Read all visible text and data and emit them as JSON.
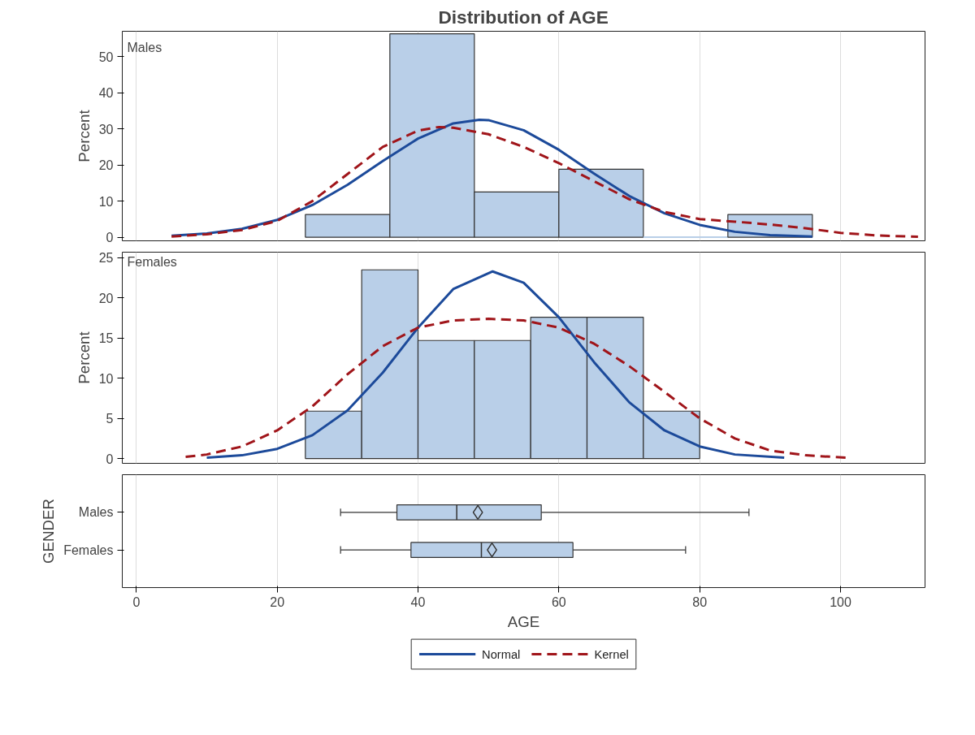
{
  "chart_data": [
    {
      "type": "histogram",
      "title": "Distribution of AGE",
      "ylabel": "Percent",
      "annotations": [
        "Males"
      ],
      "bins": [
        24,
        36,
        48,
        60,
        72,
        84,
        96
      ],
      "values": [
        6.3,
        56.3,
        12.5,
        18.8,
        0,
        6.3
      ],
      "color": "#b9cfe8",
      "xlim": [
        -2,
        112
      ],
      "xticks": [
        0,
        20,
        40,
        60,
        80,
        100
      ],
      "ylim": [
        -1,
        57
      ],
      "yticks": [
        0,
        10,
        20,
        30,
        40,
        50
      ],
      "tick_labels": "y",
      "grid": "x",
      "legend": "bottom",
      "marker": "none",
      "series": [
        {
          "name": "Normal",
          "type": "line",
          "color": "#1c4a9a",
          "line_style": "solid",
          "x": [
            5,
            10,
            15,
            20,
            25,
            30,
            35,
            40,
            45,
            48.7,
            50,
            55,
            60,
            65,
            70,
            75,
            80,
            85,
            90,
            96
          ],
          "values": [
            0.4,
            1.0,
            2.3,
            4.8,
            8.9,
            14.5,
            21.1,
            27.3,
            31.5,
            32.5,
            32.4,
            29.6,
            24.2,
            17.6,
            11.4,
            6.6,
            3.4,
            1.5,
            0.6,
            0.2
          ]
        },
        {
          "name": "Kernel",
          "type": "line",
          "color": "#a0151a",
          "line_style": "dashed",
          "x": [
            5,
            10,
            15,
            20,
            25,
            30,
            35,
            40,
            43,
            45,
            50,
            55,
            60,
            65,
            70,
            75,
            80,
            85,
            90,
            95,
            100,
            105,
            111
          ],
          "values": [
            0.2,
            0.8,
            2,
            4.5,
            10,
            17.5,
            25,
            29.5,
            30.5,
            30.3,
            28.5,
            25,
            20.5,
            15.5,
            10.5,
            7,
            5,
            4.3,
            3.5,
            2.5,
            1.2,
            0.5,
            0.1
          ]
        }
      ]
    },
    {
      "type": "histogram",
      "ylabel": "Percent",
      "annotations": [
        "Females"
      ],
      "bins": [
        24,
        32,
        40,
        48,
        56,
        64,
        72,
        80
      ],
      "values": [
        5.9,
        23.5,
        14.7,
        14.7,
        17.6,
        17.6,
        5.9
      ],
      "color": "#b9cfe8",
      "xlim": [
        -2,
        112
      ],
      "xticks": [
        0,
        20,
        40,
        60,
        80,
        100
      ],
      "ylim": [
        -0.6,
        25.7
      ],
      "yticks": [
        0,
        5,
        10,
        15,
        20,
        25
      ],
      "tick_labels": "y",
      "grid": "x",
      "marker": "none",
      "series": [
        {
          "type": "line",
          "color": "#1c4a9a",
          "line_style": "solid",
          "x": [
            10,
            15,
            20,
            25,
            30,
            35,
            40,
            45,
            50.6,
            55,
            60,
            65,
            70,
            75,
            80,
            85,
            92
          ],
          "values": [
            0.1,
            0.4,
            1.2,
            2.9,
            6.0,
            10.7,
            16.3,
            21.1,
            23.3,
            21.9,
            17.6,
            12.0,
            7.0,
            3.5,
            1.5,
            0.5,
            0.1
          ]
        },
        {
          "type": "line",
          "color": "#a0151a",
          "line_style": "dashed",
          "x": [
            7,
            10,
            15,
            20,
            25,
            30,
            35,
            40,
            45,
            50,
            55,
            60,
            65,
            70,
            75,
            80,
            85,
            90,
            95,
            101
          ],
          "values": [
            0.2,
            0.5,
            1.5,
            3.5,
            6.5,
            10.5,
            14,
            16.3,
            17.2,
            17.4,
            17.2,
            16.3,
            14.3,
            11.5,
            8.3,
            5,
            2.5,
            1,
            0.4,
            0.1
          ]
        }
      ]
    },
    {
      "type": "box",
      "orientation": "horizontal",
      "xlabel": "AGE",
      "ylabel": "GENDER",
      "categories": [
        "Males",
        "Females"
      ],
      "color": "#b9cfe8",
      "xlim": [
        -2,
        112
      ],
      "xticks": [
        0,
        20,
        40,
        60,
        80,
        100
      ],
      "grid": "x",
      "marker": "diamond",
      "boxes": [
        {
          "low": 29,
          "q1": 37,
          "median": 45.5,
          "q3": 57.5,
          "high": 87,
          "mean": 48.5
        },
        {
          "low": 29,
          "q1": 39,
          "median": 49,
          "q3": 62,
          "high": 78,
          "mean": 50.5
        }
      ]
    }
  ]
}
